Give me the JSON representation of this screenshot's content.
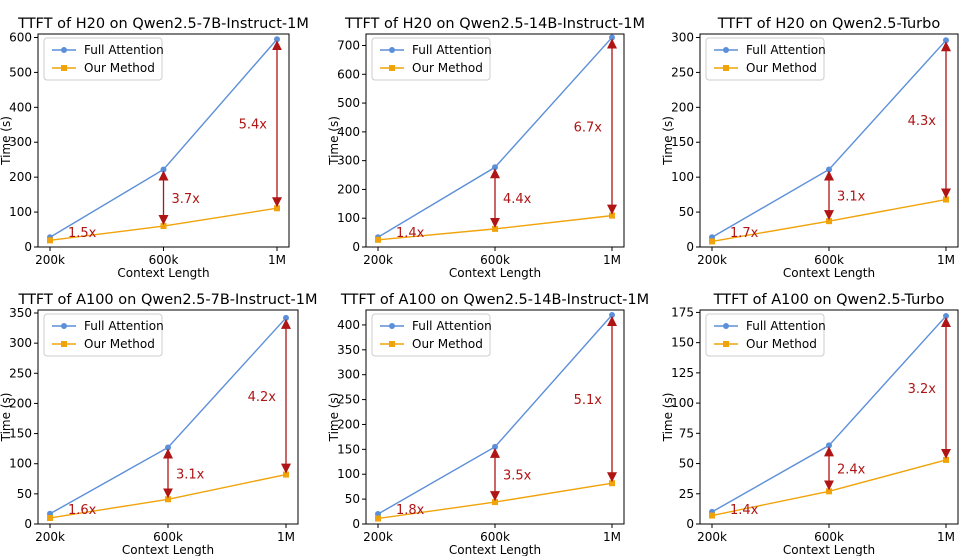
{
  "colors": {
    "full_attention": "#5b8fd9",
    "our_method": "#f0a30a",
    "speedup": "#b01515",
    "axis": "#000000"
  },
  "chart_data": [
    {
      "type": "line",
      "title": "TTFT of H20 on Qwen2.5-7B-Instruct-1M",
      "xlabel": "Context Length",
      "ylabel": "Time (s)",
      "categories": [
        "200k",
        "600k",
        "1M"
      ],
      "ylim": [
        0,
        610
      ],
      "yticks": [
        0,
        100,
        200,
        300,
        400,
        500,
        600
      ],
      "legend_position": "top-left",
      "series": [
        {
          "name": "Full Attention",
          "values": [
            28,
            222,
            595
          ]
        },
        {
          "name": "Our Method",
          "values": [
            19,
            60,
            111
          ]
        }
      ],
      "speedups": [
        "1.5x",
        "3.7x",
        "5.4x"
      ]
    },
    {
      "type": "line",
      "title": "TTFT of H20 on Qwen2.5-14B-Instruct-1M",
      "xlabel": "Context Length",
      "ylabel": "Time (s)",
      "categories": [
        "200k",
        "600k",
        "1M"
      ],
      "ylim": [
        0,
        740
      ],
      "yticks": [
        0,
        100,
        200,
        300,
        400,
        500,
        600,
        700
      ],
      "legend_position": "top-left",
      "series": [
        {
          "name": "Full Attention",
          "values": [
            34,
            277,
            728
          ]
        },
        {
          "name": "Our Method",
          "values": [
            25,
            63,
            109
          ]
        }
      ],
      "speedups": [
        "1.4x",
        "4.4x",
        "6.7x"
      ]
    },
    {
      "type": "line",
      "title": "TTFT of H20 on Qwen2.5-Turbo",
      "xlabel": "Context Length",
      "ylabel": "Time (s)",
      "categories": [
        "200k",
        "600k",
        "1M"
      ],
      "ylim": [
        0,
        305
      ],
      "yticks": [
        0,
        50,
        100,
        150,
        200,
        250,
        300
      ],
      "legend_position": "top-left",
      "series": [
        {
          "name": "Full Attention",
          "values": [
            14,
            111,
            296
          ]
        },
        {
          "name": "Our Method",
          "values": [
            8,
            37,
            68
          ]
        }
      ],
      "speedups": [
        "1.7x",
        "3.1x",
        "4.3x"
      ]
    },
    {
      "type": "line",
      "title": "TTFT of A100 on Qwen2.5-7B-Instruct-1M",
      "xlabel": "Context Length",
      "ylabel": "Time (s)",
      "categories": [
        "200k",
        "600k",
        "1M"
      ],
      "ylim": [
        0,
        355
      ],
      "yticks": [
        0,
        50,
        100,
        150,
        200,
        250,
        300,
        350
      ],
      "legend_position": "top-left",
      "series": [
        {
          "name": "Full Attention",
          "values": [
            17,
            127,
            342
          ]
        },
        {
          "name": "Our Method",
          "values": [
            10,
            41,
            82
          ]
        }
      ],
      "speedups": [
        "1.6x",
        "3.1x",
        "4.2x"
      ]
    },
    {
      "type": "line",
      "title": "TTFT of A100 on Qwen2.5-14B-Instruct-1M",
      "xlabel": "Context Length",
      "ylabel": "Time (s)",
      "categories": [
        "200k",
        "600k",
        "1M"
      ],
      "ylim": [
        0,
        430
      ],
      "yticks": [
        0,
        50,
        100,
        150,
        200,
        250,
        300,
        350,
        400
      ],
      "legend_position": "top-left",
      "series": [
        {
          "name": "Full Attention",
          "values": [
            20,
            155,
            420
          ]
        },
        {
          "name": "Our Method",
          "values": [
            11,
            44,
            82
          ]
        }
      ],
      "speedups": [
        "1.8x",
        "3.5x",
        "5.1x"
      ]
    },
    {
      "type": "line",
      "title": "TTFT of A100 on Qwen2.5-Turbo",
      "xlabel": "Context Length",
      "ylabel": "Time (s)",
      "categories": [
        "200k",
        "600k",
        "1M"
      ],
      "ylim": [
        0,
        177
      ],
      "yticks": [
        0,
        25,
        50,
        75,
        100,
        125,
        150,
        175
      ],
      "legend_position": "top-left",
      "series": [
        {
          "name": "Full Attention",
          "values": [
            10,
            65,
            172
          ]
        },
        {
          "name": "Our Method",
          "values": [
            7,
            27,
            53
          ]
        }
      ],
      "speedups": [
        "1.4x",
        "2.4x",
        "3.2x"
      ]
    }
  ]
}
